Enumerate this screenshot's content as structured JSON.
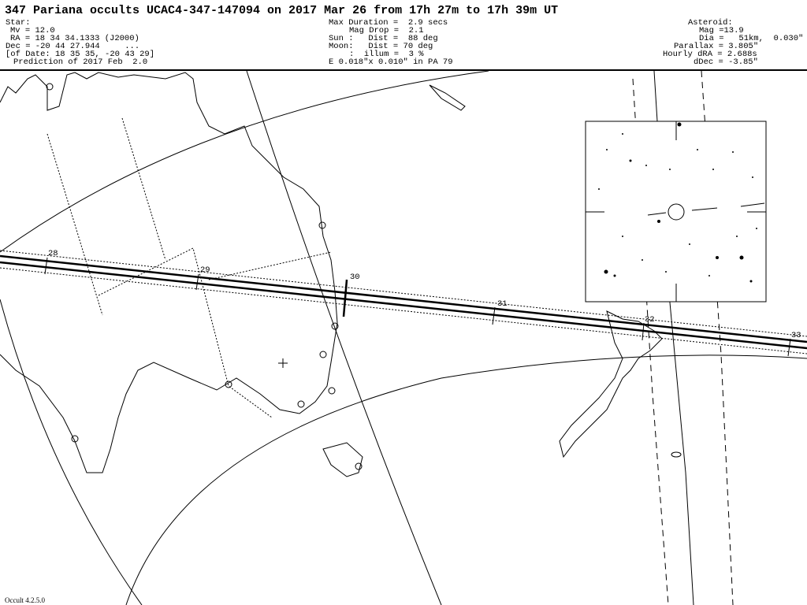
{
  "title": "347 Pariana occults UCAC4-347-147094 on 2017 Mar 26 from 17h 27m to 17h 39m UT",
  "star": [
    "Star:",
    "Mv = 12.0",
    "RA = 18 34 34.1333 (J2000)",
    "Dec = -20 44 27.944     ...",
    "[of Date: 18 35 35, -20 43 29]",
    "Prediction of 2017 Feb  2.0"
  ],
  "event": [
    "Max Duration =  2.9 secs",
    "Mag Drop =  2.1",
    "Sun :   Dist =  88 deg",
    "Moon:   Dist = 70 deg",
    ":  illum =  3 %",
    "E 0.018\"x 0.010\" in PA 79"
  ],
  "asteroid": [
    "Asteroid:",
    "Mag =13.9",
    "Dia =   51km,  0.030\"",
    "Parallax = 3.805\"",
    "Hourly dRA = 2.688s",
    "dDec = -3.85\""
  ],
  "path_labels": [
    "28",
    "29",
    "30",
    "31",
    "32",
    "33"
  ],
  "footer": "Occult 4.2.5.0"
}
